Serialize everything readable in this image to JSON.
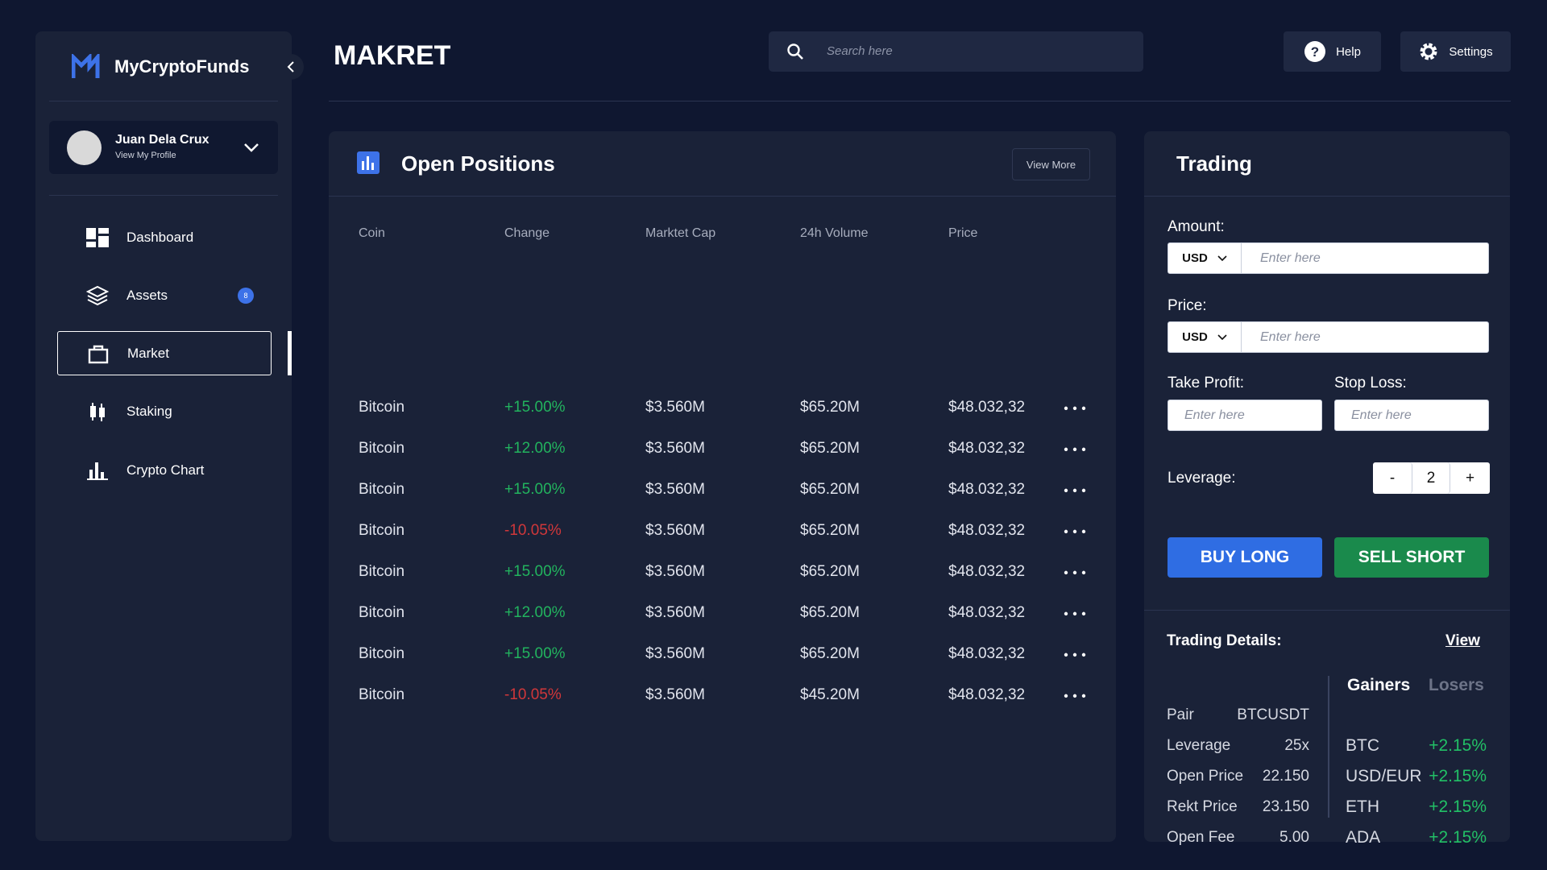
{
  "sidebar": {
    "brand": "MyCryptoFunds",
    "user": {
      "name": "Juan Dela Crux",
      "sub": "View My Profile"
    },
    "nav": [
      {
        "label": "Dashboard"
      },
      {
        "label": "Assets",
        "badge": "8"
      },
      {
        "label": "Market"
      },
      {
        "label": "Staking"
      },
      {
        "label": "Crypto Chart"
      }
    ]
  },
  "header": {
    "title": "MAKRET",
    "search_placeholder": "Search here",
    "help": "Help",
    "settings": "Settings"
  },
  "positions": {
    "title": "Open Positions",
    "view_more": "View More",
    "columns": [
      "Coin",
      "Change",
      "Marktet Cap",
      "24h Volume",
      "Price"
    ],
    "rows": [
      [
        "Bitcoin",
        "+15.00%",
        "$3.560M",
        "$65.20M",
        "$48.032,32"
      ],
      [
        "Bitcoin",
        "+12.00%",
        "$3.560M",
        "$65.20M",
        "$48.032,32"
      ],
      [
        "Bitcoin",
        "+15.00%",
        "$3.560M",
        "$65.20M",
        "$48.032,32"
      ],
      [
        "Bitcoin",
        "-10.05%",
        "$3.560M",
        "$65.20M",
        "$48.032,32"
      ],
      [
        "Bitcoin",
        "+15.00%",
        "$3.560M",
        "$65.20M",
        "$48.032,32"
      ],
      [
        "Bitcoin",
        "+12.00%",
        "$3.560M",
        "$65.20M",
        "$48.032,32"
      ],
      [
        "Bitcoin",
        "+15.00%",
        "$3.560M",
        "$65.20M",
        "$48.032,32"
      ],
      [
        "Bitcoin",
        "-10.05%",
        "$3.560M",
        "$45.20M",
        "$48.032,32"
      ]
    ]
  },
  "trading": {
    "title": "Trading",
    "amount_label": "Amount:",
    "price_label": "Price:",
    "currency": "USD",
    "placeholder": "Enter here",
    "take_profit_label": "Take Profit:",
    "stop_loss_label": "Stop Loss:",
    "leverage_label": "Leverage:",
    "leverage_minus": "-",
    "leverage_value": "2",
    "leverage_plus": "+",
    "buy": "BUY LONG",
    "sell": "SELL SHORT"
  },
  "details": {
    "title": "Trading Details:",
    "view": "View",
    "rows": [
      [
        "Pair",
        "BTCUSDT"
      ],
      [
        "Leverage",
        "25x"
      ],
      [
        "Open Price",
        "22.150"
      ],
      [
        "Rekt Price",
        "23.150"
      ],
      [
        "Open Fee",
        "5.00"
      ]
    ],
    "gainers_tab": "Gainers",
    "losers_tab": "Losers",
    "gainers": [
      [
        "BTC",
        "+2.15%"
      ],
      [
        "USD/EUR",
        "+2.15%"
      ],
      [
        "ETH",
        "+2.15%"
      ],
      [
        "ADA",
        "+2.15%"
      ]
    ]
  }
}
